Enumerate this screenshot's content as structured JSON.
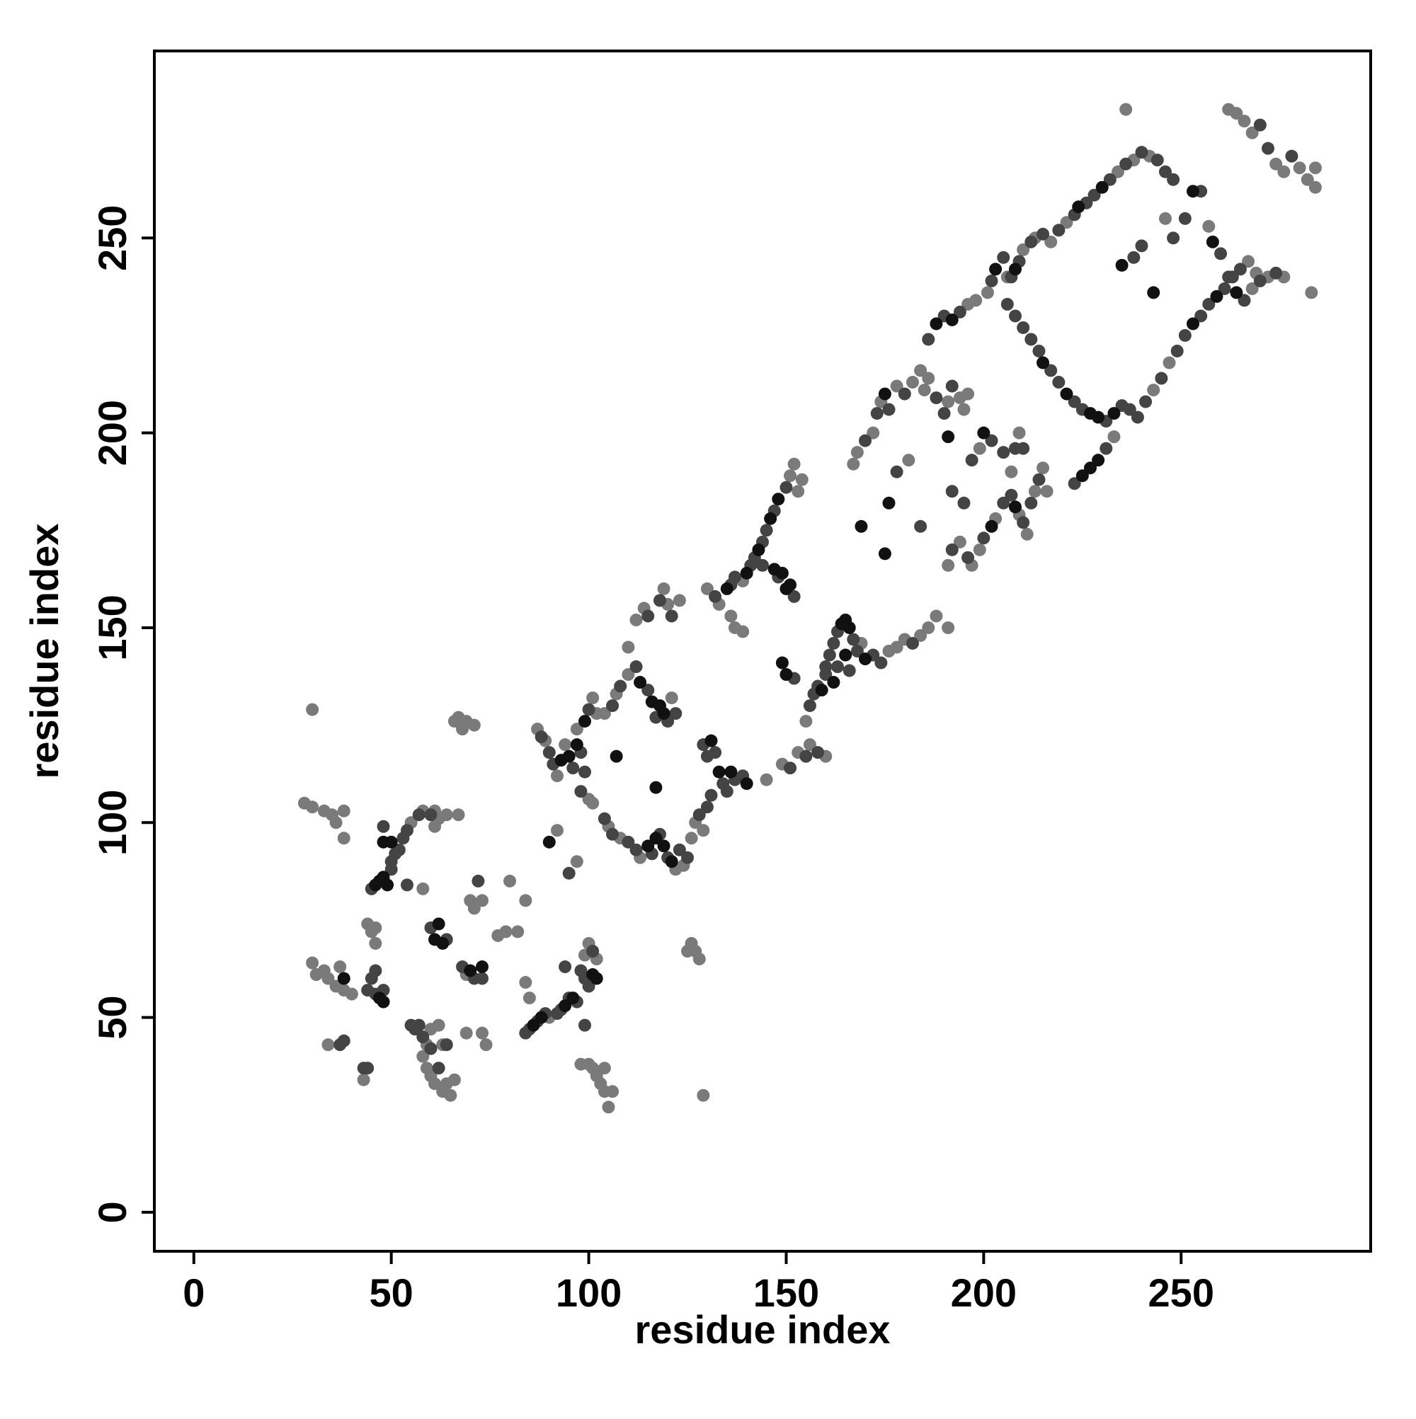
{
  "chart_data": {
    "type": "scatter",
    "xlabel": "residue index",
    "ylabel": "residue index",
    "xlim": [
      -10,
      298
    ],
    "ylim": [
      -10,
      298
    ],
    "xticks": [
      0,
      50,
      100,
      150,
      200,
      250
    ],
    "yticks": [
      0,
      50,
      100,
      150,
      200,
      250
    ],
    "series": [
      {
        "color": "#7a7a7a",
        "x": [
          28,
          30,
          33,
          35,
          36,
          38,
          38,
          30,
          30,
          31,
          33,
          34,
          36,
          37,
          38,
          40,
          34,
          43,
          44,
          45,
          46,
          46,
          55,
          58,
          61,
          62,
          64,
          67,
          61,
          58,
          59,
          58,
          59,
          60,
          61,
          63,
          64,
          65,
          66,
          60,
          62,
          63,
          66,
          67,
          68,
          69,
          71,
          69,
          70,
          71,
          73,
          69,
          73,
          74,
          77,
          79,
          80,
          82,
          84,
          85,
          84,
          90,
          92,
          97,
          98,
          100,
          101,
          102,
          103,
          104,
          105,
          106,
          104,
          102,
          100,
          99,
          125,
          126,
          127,
          128,
          129,
          87,
          89,
          92,
          94,
          97,
          101,
          102,
          100,
          101,
          104,
          107,
          110,
          110,
          121,
          112,
          114,
          119,
          120,
          123,
          105,
          108,
          113,
          122,
          124,
          126,
          127,
          129,
          130,
          133,
          139,
          151,
          152,
          153,
          154,
          136,
          137,
          139,
          145,
          149,
          153,
          156,
          160,
          155,
          169,
          176,
          178,
          180,
          184,
          186,
          188,
          191,
          167,
          168,
          172,
          174,
          178,
          182,
          184,
          185,
          186,
          191,
          194,
          195,
          196,
          181,
          191,
          194,
          197,
          199,
          203,
          209,
          211,
          213,
          215,
          216,
          199,
          207,
          209,
          196,
          198,
          201,
          206,
          210,
          213,
          217,
          221,
          234,
          238,
          242,
          243,
          247,
          267,
          269,
          233,
          246,
          257,
          268,
          272,
          276,
          236,
          262,
          264,
          266,
          268,
          274,
          276,
          280,
          282,
          284,
          284,
          283
        ],
        "y": [
          105,
          104,
          103,
          102,
          100,
          103,
          96,
          129,
          64,
          61,
          62,
          60,
          58,
          63,
          57,
          56,
          43,
          34,
          74,
          72,
          69,
          73,
          100,
          103,
          103,
          101,
          102,
          102,
          99,
          83,
          43,
          40,
          37,
          35,
          33,
          31,
          33,
          30,
          34,
          47,
          48,
          43,
          126,
          127,
          124,
          126,
          125,
          61,
          80,
          78,
          80,
          46,
          46,
          43,
          71,
          72,
          85,
          72,
          59,
          55,
          80,
          50,
          98,
          90,
          38,
          38,
          37,
          35,
          33,
          31,
          27,
          31,
          37,
          65,
          69,
          66,
          67,
          69,
          67,
          65,
          30,
          124,
          121,
          112,
          120,
          124,
          132,
          128,
          106,
          105,
          128,
          133,
          138,
          145,
          132,
          152,
          155,
          160,
          156,
          157,
          99,
          96,
          91,
          88,
          89,
          96,
          100,
          98,
          160,
          156,
          162,
          189,
          192,
          185,
          188,
          153,
          150,
          149,
          111,
          115,
          118,
          120,
          117,
          126,
          146,
          144,
          145,
          147,
          148,
          150,
          153,
          150,
          192,
          195,
          200,
          208,
          212,
          213,
          216,
          211,
          214,
          208,
          209,
          206,
          210,
          193,
          166,
          172,
          166,
          170,
          178,
          179,
          174,
          185,
          191,
          185,
          196,
          190,
          200,
          233,
          234,
          236,
          240,
          247,
          250,
          249,
          254,
          267,
          270,
          271,
          211,
          218,
          244,
          241,
          199,
          255,
          253,
          237,
          240,
          240,
          283,
          283,
          282,
          280,
          277,
          269,
          267,
          268,
          265,
          268,
          263,
          236
        ]
      },
      {
        "color": "#444444",
        "x": [
          37,
          38,
          43,
          44,
          44,
          45,
          46,
          48,
          46,
          45,
          50,
          50,
          51,
          52,
          48,
          53,
          54,
          57,
          60,
          54,
          55,
          56,
          57,
          58,
          60,
          62,
          64,
          60,
          64,
          68,
          71,
          73,
          72,
          84,
          85,
          87,
          89,
          92,
          93,
          95,
          97,
          94,
          95,
          98,
          99,
          100,
          101,
          99,
          88,
          90,
          91,
          96,
          98,
          100,
          99,
          98,
          106,
          108,
          112,
          115,
          117,
          120,
          122,
          115,
          118,
          121,
          104,
          106,
          110,
          112,
          116,
          118,
          120,
          123,
          125,
          128,
          130,
          131,
          129,
          130,
          132,
          134,
          135,
          137,
          139,
          132,
          136,
          137,
          141,
          142,
          144,
          145,
          147,
          150,
          144,
          148,
          152,
          152,
          151,
          155,
          158,
          156,
          157,
          158,
          160,
          161,
          162,
          163,
          167,
          168,
          172,
          174,
          182,
          160,
          163,
          166,
          170,
          173,
          176,
          180,
          188,
          190,
          192,
          178,
          184,
          192,
          195,
          192,
          196,
          200,
          205,
          207,
          210,
          212,
          214,
          197,
          202,
          205,
          208,
          210,
          186,
          190,
          194,
          202,
          205,
          207,
          209,
          212,
          215,
          219,
          223,
          226,
          228,
          232,
          236,
          240,
          244,
          246,
          248,
          206,
          208,
          210,
          212,
          214,
          217,
          219,
          223,
          225,
          231,
          235,
          237,
          239,
          241,
          245,
          249,
          251,
          255,
          257,
          261,
          263,
          265,
          223,
          231,
          238,
          240,
          248,
          251,
          255,
          260,
          262,
          266,
          270,
          274,
          270,
          272,
          278
        ],
        "y": [
          43,
          44,
          37,
          37,
          57,
          60,
          56,
          57,
          62,
          83,
          88,
          90,
          92,
          93,
          99,
          96,
          98,
          102,
          102,
          84,
          48,
          47,
          48,
          45,
          42,
          37,
          43,
          73,
          70,
          63,
          60,
          60,
          85,
          46,
          47,
          49,
          51,
          51,
          52,
          55,
          54,
          63,
          87,
          62,
          60,
          58,
          67,
          48,
          122,
          118,
          115,
          114,
          118,
          129,
          113,
          108,
          130,
          135,
          140,
          134,
          127,
          126,
          128,
          153,
          157,
          153,
          101,
          97,
          95,
          93,
          92,
          97,
          91,
          93,
          91,
          102,
          104,
          107,
          120,
          117,
          118,
          110,
          108,
          111,
          112,
          158,
          161,
          163,
          166,
          168,
          172,
          175,
          180,
          186,
          166,
          163,
          158,
          137,
          114,
          117,
          118,
          130,
          133,
          135,
          140,
          143,
          146,
          149,
          147,
          144,
          143,
          141,
          146,
          138,
          140,
          139,
          198,
          205,
          206,
          210,
          209,
          205,
          212,
          190,
          176,
          185,
          182,
          170,
          168,
          173,
          182,
          184,
          177,
          182,
          188,
          193,
          198,
          195,
          196,
          196,
          224,
          230,
          231,
          239,
          245,
          240,
          244,
          249,
          251,
          252,
          256,
          259,
          261,
          265,
          269,
          272,
          270,
          267,
          265,
          233,
          230,
          227,
          224,
          221,
          216,
          213,
          208,
          206,
          203,
          207,
          206,
          204,
          208,
          214,
          221,
          225,
          230,
          233,
          237,
          240,
          242,
          187,
          196,
          245,
          248,
          250,
          255,
          262,
          246,
          240,
          234,
          239,
          241,
          279,
          273,
          271
        ]
      },
      {
        "color": "#111111",
        "x": [
          38,
          47,
          48,
          46,
          47,
          48,
          49,
          48,
          50,
          61,
          62,
          63,
          70,
          73,
          86,
          88,
          94,
          96,
          90,
          101,
          102,
          93,
          95,
          97,
          99,
          107,
          113,
          116,
          118,
          119,
          115,
          117,
          119,
          121,
          117,
          131,
          133,
          136,
          140,
          135,
          140,
          143,
          146,
          148,
          147,
          149,
          150,
          151,
          149,
          150,
          164,
          165,
          166,
          170,
          159,
          162,
          165,
          175,
          169,
          175,
          176,
          191,
          202,
          208,
          200,
          188,
          192,
          203,
          208,
          224,
          230,
          215,
          221,
          227,
          229,
          233,
          253,
          259,
          225,
          227,
          229,
          235,
          243,
          253,
          258,
          264
        ],
        "y": [
          60,
          55,
          54,
          84,
          85,
          86,
          84,
          95,
          95,
          70,
          74,
          69,
          62,
          63,
          48,
          50,
          53,
          55,
          95,
          61,
          60,
          116,
          117,
          120,
          126,
          117,
          136,
          131,
          130,
          128,
          94,
          96,
          94,
          90,
          109,
          121,
          113,
          113,
          110,
          160,
          164,
          170,
          178,
          183,
          165,
          164,
          160,
          161,
          141,
          138,
          151,
          152,
          150,
          142,
          134,
          136,
          143,
          210,
          176,
          169,
          182,
          199,
          176,
          181,
          200,
          228,
          229,
          242,
          242,
          258,
          263,
          218,
          210,
          205,
          204,
          205,
          228,
          235,
          189,
          191,
          193,
          243,
          236,
          262,
          249,
          236
        ]
      }
    ]
  }
}
